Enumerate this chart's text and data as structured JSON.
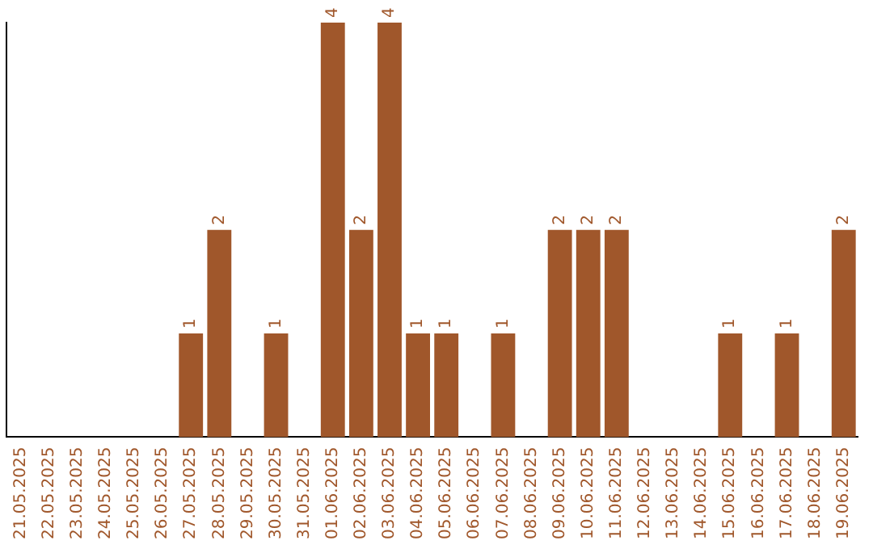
{
  "chart_data": {
    "type": "bar",
    "categories": [
      "21.05.2025",
      "22.05.2025",
      "23.05.2025",
      "24.05.2025",
      "25.05.2025",
      "26.05.2025",
      "27.05.2025",
      "28.05.2025",
      "29.05.2025",
      "30.05.2025",
      "31.05.2025",
      "01.06.2025",
      "02.06.2025",
      "03.06.2025",
      "04.06.2025",
      "05.06.2025",
      "06.06.2025",
      "07.06.2025",
      "08.06.2025",
      "09.06.2025",
      "10.06.2025",
      "11.06.2025",
      "12.06.2025",
      "13.06.2025",
      "14.06.2025",
      "15.06.2025",
      "16.06.2025",
      "17.06.2025",
      "18.06.2025",
      "19.06.2025"
    ],
    "values": [
      0,
      0,
      0,
      0,
      0,
      0,
      1,
      2,
      0,
      1,
      0,
      4,
      2,
      4,
      1,
      1,
      0,
      1,
      0,
      2,
      2,
      2,
      0,
      0,
      0,
      1,
      0,
      1,
      0,
      2
    ],
    "value_labels": [
      null,
      null,
      null,
      null,
      null,
      null,
      "1",
      "2",
      null,
      "1",
      null,
      "4",
      "2",
      "4",
      "1",
      "1",
      null,
      "1",
      null,
      "2",
      "2",
      "2",
      null,
      null,
      null,
      "1",
      null,
      "1",
      null,
      "2"
    ],
    "color": "#a0572b",
    "grid": false,
    "legend": false,
    "tick_labels": "x"
  }
}
